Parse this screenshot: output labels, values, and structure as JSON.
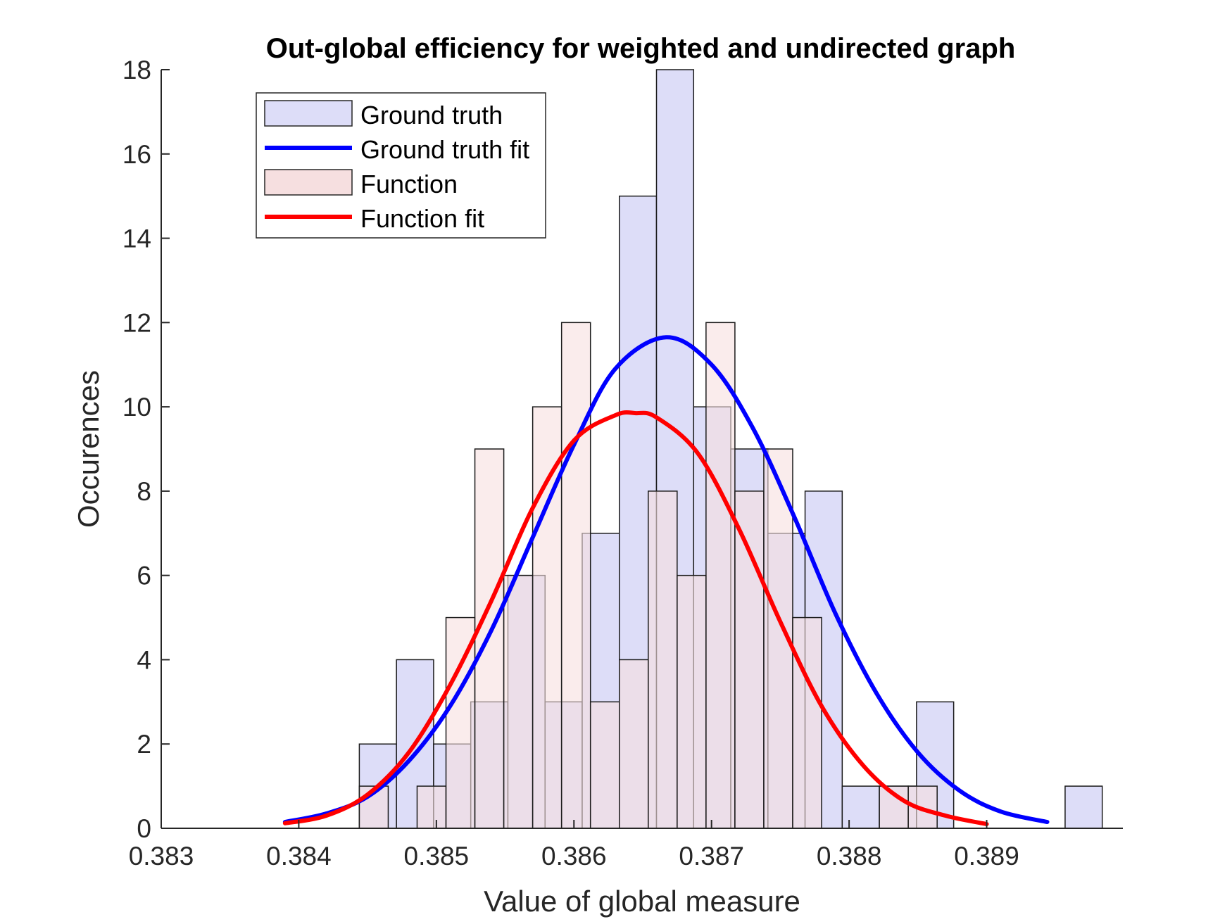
{
  "chart_data": {
    "type": "bar",
    "title": "Out-global efficiency for weighted and undirected graph",
    "xlabel": "Value of global measure",
    "ylabel": "Occurences",
    "xlim": [
      0.383,
      0.38999
    ],
    "ylim": [
      0,
      18
    ],
    "xticks": [
      "0.383",
      "0.384",
      "0.385",
      "0.386",
      "0.387",
      "0.388",
      "0.389"
    ],
    "yticks": [
      "0",
      "2",
      "4",
      "6",
      "8",
      "10",
      "12",
      "14",
      "16",
      "18"
    ],
    "legend_position": "top-left",
    "series": [
      {
        "name": "Ground truth",
        "kind": "histogram",
        "color": "#ddddf8",
        "bin_width": 0.00027,
        "bins": [
          {
            "x0": 0.38444,
            "count": 2
          },
          {
            "x0": 0.38471,
            "count": 4
          },
          {
            "x0": 0.38498,
            "count": 2
          },
          {
            "x0": 0.38525,
            "count": 3
          },
          {
            "x0": 0.38552,
            "count": 6
          },
          {
            "x0": 0.38579,
            "count": 3
          },
          {
            "x0": 0.38606,
            "count": 7
          },
          {
            "x0": 0.38633,
            "count": 15
          },
          {
            "x0": 0.3866,
            "count": 18
          },
          {
            "x0": 0.38687,
            "count": 10
          },
          {
            "x0": 0.38714,
            "count": 9
          },
          {
            "x0": 0.38741,
            "count": 7
          },
          {
            "x0": 0.38768,
            "count": 8
          },
          {
            "x0": 0.38795,
            "count": 1
          },
          {
            "x0": 0.38822,
            "count": 1
          },
          {
            "x0": 0.38849,
            "count": 3
          },
          {
            "x0": 0.38876,
            "count": 0
          },
          {
            "x0": 0.38903,
            "count": 0
          },
          {
            "x0": 0.3893,
            "count": 0
          },
          {
            "x0": 0.38957,
            "count": 1
          }
        ]
      },
      {
        "name": "Ground truth fit",
        "kind": "line",
        "color": "#0000ff",
        "x": [
          0.3839,
          0.3842,
          0.3845,
          0.3848,
          0.3851,
          0.3854,
          0.3857,
          0.386,
          0.3863,
          0.38667,
          0.387,
          0.3873,
          0.3876,
          0.3879,
          0.3882,
          0.3885,
          0.3888,
          0.3891,
          0.38944
        ],
        "y": [
          0.15,
          0.35,
          0.75,
          1.6,
          2.9,
          4.7,
          6.9,
          9.1,
          10.9,
          11.65,
          11.0,
          9.5,
          7.4,
          5.1,
          3.2,
          1.8,
          0.9,
          0.4,
          0.15
        ]
      },
      {
        "name": "Function",
        "kind": "histogram",
        "color": "#f6dfe0",
        "bin_width": 0.00021,
        "bins": [
          {
            "x0": 0.38444,
            "count": 1
          },
          {
            "x0": 0.38465,
            "count": 0
          },
          {
            "x0": 0.38486,
            "count": 1
          },
          {
            "x0": 0.38507,
            "count": 5
          },
          {
            "x0": 0.38528,
            "count": 9
          },
          {
            "x0": 0.38549,
            "count": 6
          },
          {
            "x0": 0.3857,
            "count": 10
          },
          {
            "x0": 0.38591,
            "count": 12
          },
          {
            "x0": 0.38612,
            "count": 3
          },
          {
            "x0": 0.38633,
            "count": 4
          },
          {
            "x0": 0.38654,
            "count": 8
          },
          {
            "x0": 0.38675,
            "count": 6
          },
          {
            "x0": 0.38696,
            "count": 12
          },
          {
            "x0": 0.38717,
            "count": 8
          },
          {
            "x0": 0.38738,
            "count": 9
          },
          {
            "x0": 0.38759,
            "count": 5
          },
          {
            "x0": 0.3878,
            "count": 0
          },
          {
            "x0": 0.38801,
            "count": 0
          },
          {
            "x0": 0.38822,
            "count": 1
          },
          {
            "x0": 0.38843,
            "count": 1
          }
        ]
      },
      {
        "name": "Function fit",
        "kind": "line",
        "color": "#ff0000",
        "x": [
          0.3839,
          0.3842,
          0.3845,
          0.3848,
          0.3851,
          0.3854,
          0.3857,
          0.386,
          0.3863,
          0.38645,
          0.3866,
          0.3869,
          0.3872,
          0.3875,
          0.3878,
          0.3881,
          0.3884,
          0.3887,
          0.389
        ],
        "y": [
          0.12,
          0.3,
          0.8,
          1.8,
          3.4,
          5.4,
          7.6,
          9.2,
          9.8,
          9.85,
          9.75,
          8.9,
          7.1,
          4.9,
          2.9,
          1.5,
          0.65,
          0.3,
          0.1
        ]
      }
    ]
  }
}
